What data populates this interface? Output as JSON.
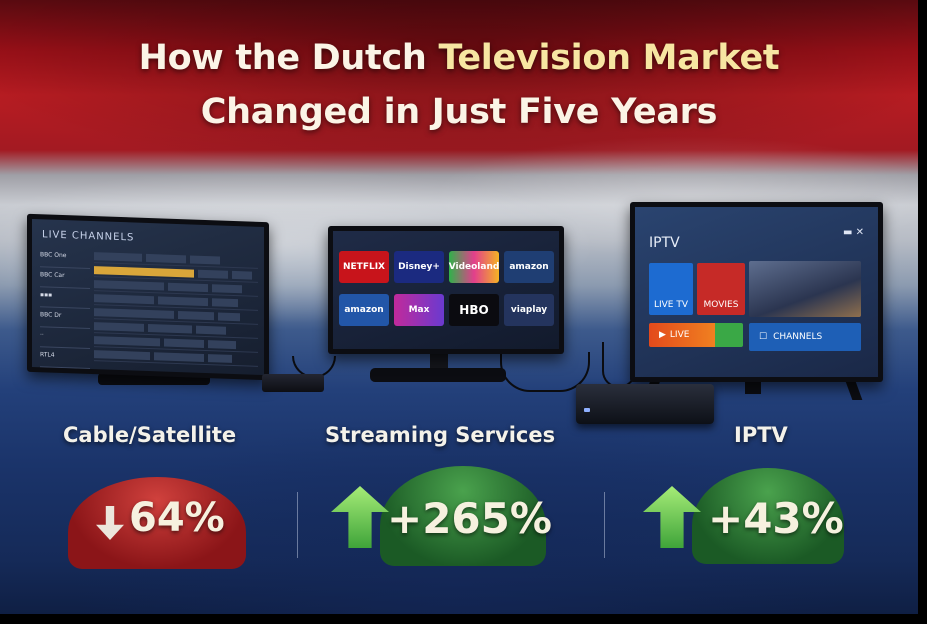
{
  "title": {
    "line1_prefix": "How the Dutch ",
    "line1_highlight": "Television Market",
    "line2": "Changed in Just Five Years"
  },
  "tv_left": {
    "screen_title": "LIVE CHANNELS",
    "channels": [
      "BBC One",
      "BBC Car",
      "BBC Dr",
      "RTL4"
    ]
  },
  "tv_center": {
    "tiles": [
      "NETFLIX",
      "Disney+",
      "Videoland",
      "amazon",
      "amazon",
      "Max",
      "HBO",
      "viaplay"
    ]
  },
  "tv_right": {
    "screen_title": "IPTV",
    "live_tv": "LIVE TV",
    "movies": "MOVIES",
    "live": "LIVE",
    "channels": "CHANNELS"
  },
  "categories": [
    {
      "label": "Cable/Satellite",
      "change": "64%",
      "direction": "down",
      "color": "#b82a2c"
    },
    {
      "label": "Streaming Services",
      "change": "+265%",
      "direction": "up",
      "color": "#3c8f3f"
    },
    {
      "label": "IPTV",
      "change": "+43%",
      "direction": "up",
      "color": "#3c8f3f"
    }
  ],
  "colors": {
    "red": "#b81c22",
    "white": "#c9ccd2",
    "blue": "#1a3369",
    "accent_gold": "#f7e6a2"
  }
}
